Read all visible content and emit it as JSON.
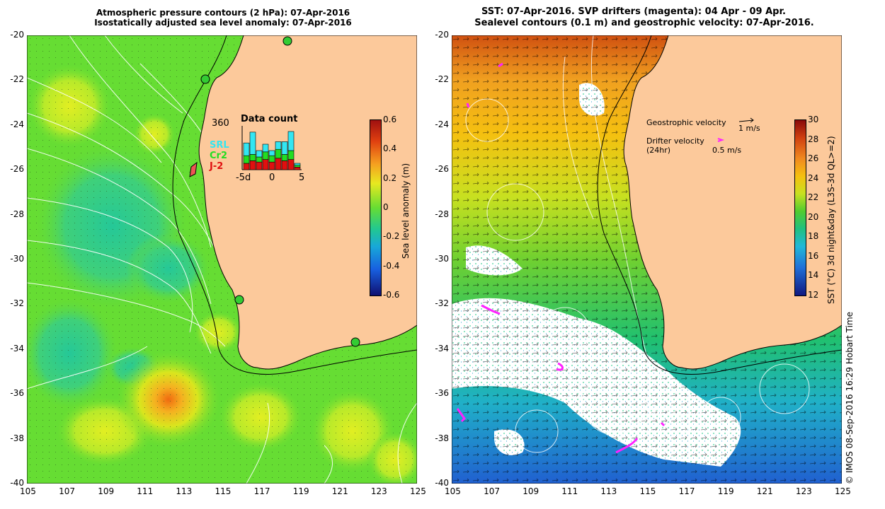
{
  "left_panel": {
    "title_line1": "Atmospheric pressure contours (2 hPa): 07-Apr-2016",
    "title_line2": "Isostatically adjusted sea level anomaly: 07-Apr-2016",
    "y_ticks": [
      "-20",
      "-22",
      "-24",
      "-26",
      "-28",
      "-30",
      "-32",
      "-34",
      "-36",
      "-38",
      "-40"
    ],
    "x_ticks": [
      "105",
      "107",
      "109",
      "111",
      "113",
      "115",
      "117",
      "119",
      "121",
      "123",
      "125"
    ],
    "colorbar": {
      "label": "Sea level anomaly (m)",
      "ticks": [
        "0.6",
        "0.4",
        "0.2",
        "0",
        "-0.2",
        "-0.4",
        "-0.6"
      ]
    },
    "data_count": {
      "title": "Data count",
      "max_label": "360",
      "x_ticks": [
        "-5d",
        "0",
        "5"
      ],
      "legend": [
        {
          "label": "SRL",
          "color": "#33e6f2"
        },
        {
          "label": "Cr2",
          "color": "#22dd22"
        },
        {
          "label": "J-2",
          "color": "#e01010"
        }
      ]
    }
  },
  "right_panel": {
    "title_line1": "SST: 07-Apr-2016. SVP drifters (magenta): 04 Apr - 09 Apr.",
    "title_line2": "Sealevel contours (0.1 m) and geostrophic velocity: 07-Apr-2016.",
    "y_ticks": [
      "-20",
      "-22",
      "-24",
      "-26",
      "-28",
      "-30",
      "-32",
      "-34",
      "-36",
      "-38",
      "-40"
    ],
    "x_ticks": [
      "105",
      "107",
      "109",
      "111",
      "113",
      "115",
      "117",
      "119",
      "121",
      "123",
      "125"
    ],
    "colorbar": {
      "label": "SST (°C) 3d night&day (L3S-3d QL>=2)",
      "ticks": [
        "30",
        "28",
        "26",
        "24",
        "22",
        "20",
        "18",
        "16",
        "14",
        "12"
      ]
    },
    "legend": {
      "geo_label": "Geostrophic velocity",
      "geo_scale": "1 m/s",
      "drifter_label": "Drifter velocity",
      "drifter_sub": "(24hr)",
      "drifter_scale": "0.5 m/s"
    }
  },
  "credit": "© IMOS 08-Sep-2016 16:29 Hobart Time",
  "colors": {
    "land": "#fcc99b",
    "sla_base": "#66dd33",
    "drifter": "#ff22ff"
  }
}
